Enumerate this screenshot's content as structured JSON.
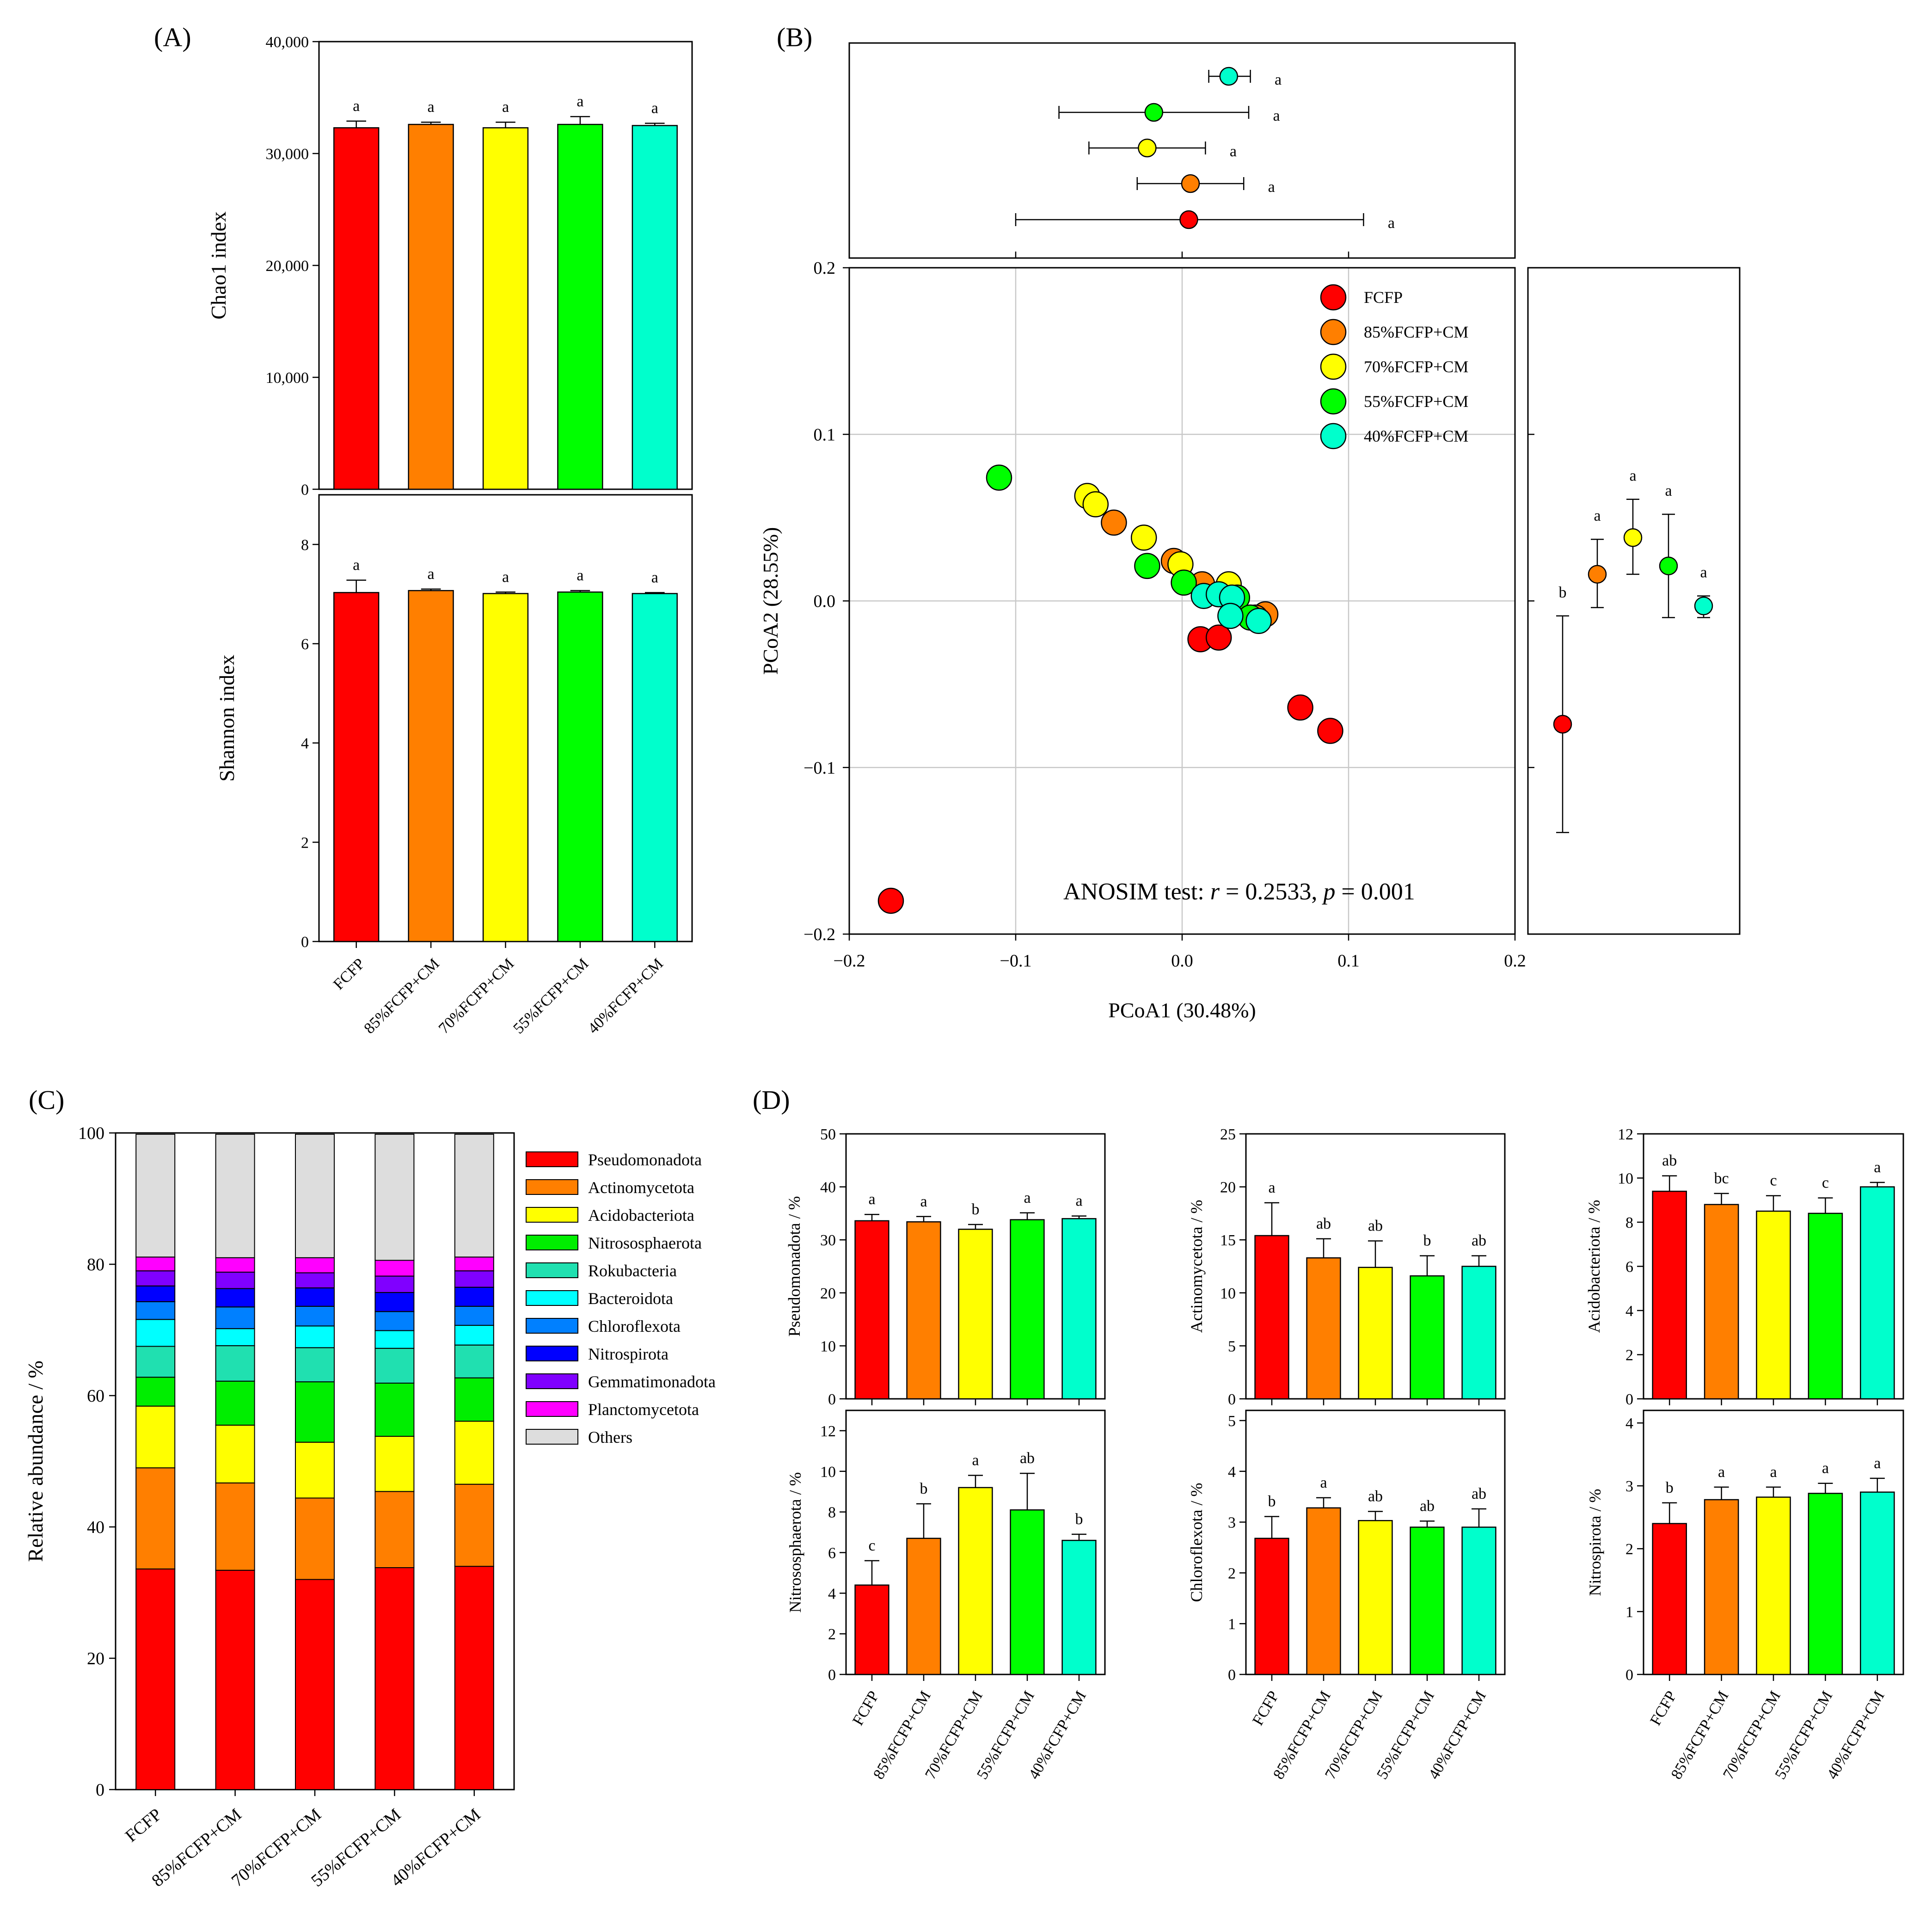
{
  "colors": {
    "FCFP": "#ff0000",
    "85%FCFP+CM": "#ff7f00",
    "70%FCFP+CM": "#ffff00",
    "55%FCFP+CM": "#00ff00",
    "40%FCFP+CM": "#00ffcc"
  },
  "chart_data": [
    {
      "id": "A-chao1",
      "type": "bar",
      "panel": "(A)",
      "ylabel": "Chao1 index",
      "ylim": [
        0,
        40000
      ],
      "yticks": [
        0,
        10000,
        20000,
        30000,
        40000
      ],
      "yticklabels": [
        "0",
        "10,000",
        "20,000",
        "30,000",
        "40,000"
      ],
      "categories": [
        "FCFP",
        "85%FCFP+CM",
        "70%FCFP+CM",
        "55%FCFP+CM",
        "40%FCFP+CM"
      ],
      "values": [
        32300,
        32600,
        32300,
        32600,
        32500
      ],
      "errors": [
        600,
        200,
        500,
        700,
        200
      ],
      "letters": [
        "a",
        "a",
        "a",
        "a",
        "a"
      ]
    },
    {
      "id": "A-shannon",
      "type": "bar",
      "ylabel": "Shannon index",
      "ylim": [
        0,
        9
      ],
      "yticks": [
        0,
        2,
        4,
        6,
        8
      ],
      "yticklabels": [
        "0",
        "2",
        "4",
        "6",
        "8"
      ],
      "categories": [
        "FCFP",
        "85%FCFP+CM",
        "70%FCFP+CM",
        "55%FCFP+CM",
        "40%FCFP+CM"
      ],
      "values": [
        7.03,
        7.07,
        7.01,
        7.04,
        7.01
      ],
      "errors": [
        0.25,
        0.03,
        0.03,
        0.03,
        0.02
      ],
      "letters": [
        "a",
        "a",
        "a",
        "a",
        "a"
      ]
    },
    {
      "id": "B",
      "type": "scatter",
      "panel": "(B)",
      "xlabel": "PCoA1 (30.48%)",
      "ylabel": "PCoA2 (28.55%)",
      "xlim": [
        -0.2,
        0.2
      ],
      "ylim": [
        -0.2,
        0.2
      ],
      "xticks": [
        -0.2,
        -0.1,
        0.0,
        0.1,
        0.2
      ],
      "xticklabels": [
        "−0.2",
        "−0.1",
        "0.0",
        "0.1",
        "0.2"
      ],
      "yticks": [
        -0.2,
        -0.1,
        0.0,
        0.1,
        0.2
      ],
      "yticklabels": [
        "−0.2",
        "−0.1",
        "0.0",
        "0.1",
        "0.2"
      ],
      "annotation": {
        "prefix": "ANOSIM test: ",
        "r_sym": "r",
        "r_val": " = 0.2533, ",
        "p_sym": "p",
        "p_val": " = 0.001"
      },
      "series": [
        {
          "name": "FCFP",
          "points": [
            [
              -0.175,
              -0.18
            ],
            [
              0.071,
              -0.064
            ],
            [
              0.089,
              -0.078
            ],
            [
              0.011,
              -0.023
            ],
            [
              0.022,
              -0.022
            ]
          ]
        },
        {
          "name": "85%FCFP+CM",
          "points": [
            [
              -0.041,
              0.047
            ],
            [
              -0.005,
              0.024
            ],
            [
              0.012,
              0.01
            ],
            [
              0.05,
              -0.008
            ],
            [
              0.044,
              -0.01
            ]
          ]
        },
        {
          "name": "70%FCFP+CM",
          "points": [
            [
              -0.057,
              0.063
            ],
            [
              -0.052,
              0.058
            ],
            [
              -0.023,
              0.038
            ],
            [
              -0.001,
              0.022
            ],
            [
              0.028,
              0.01
            ]
          ]
        },
        {
          "name": "55%FCFP+CM",
          "points": [
            [
              -0.11,
              0.074
            ],
            [
              -0.021,
              0.021
            ],
            [
              0.001,
              0.011
            ],
            [
              0.033,
              0.002
            ],
            [
              0.041,
              -0.01
            ]
          ]
        },
        {
          "name": "40%FCFP+CM",
          "points": [
            [
              0.013,
              0.003
            ],
            [
              0.022,
              0.004
            ],
            [
              0.03,
              0.002
            ],
            [
              0.029,
              -0.009
            ],
            [
              0.046,
              -0.012
            ]
          ]
        }
      ],
      "top_marginal": {
        "order": [
          "40%FCFP+CM",
          "55%FCFP+CM",
          "70%FCFP+CM",
          "85%FCFP+CM",
          "FCFP"
        ],
        "means": [
          0.028,
          -0.017,
          -0.021,
          0.005,
          0.004
        ],
        "lo": [
          0.016,
          -0.074,
          -0.056,
          -0.027,
          -0.1
        ],
        "hi": [
          0.041,
          0.04,
          0.014,
          0.037,
          0.109
        ],
        "letters": [
          "a",
          "a",
          "a",
          "a",
          "a"
        ]
      },
      "right_marginal": {
        "order": [
          "FCFP",
          "85%FCFP+CM",
          "70%FCFP+CM",
          "55%FCFP+CM",
          "40%FCFP+CM"
        ],
        "means": [
          -0.074,
          0.016,
          0.038,
          0.021,
          -0.003
        ],
        "lo": [
          -0.139,
          -0.004,
          0.016,
          -0.01,
          -0.01
        ],
        "hi": [
          -0.009,
          0.037,
          0.061,
          0.052,
          0.003
        ],
        "letters": [
          "b",
          "a",
          "a",
          "a",
          "a"
        ]
      }
    },
    {
      "id": "C",
      "type": "bar",
      "stacked": true,
      "panel": "(C)",
      "ylabel": "Relative abundance / %",
      "ylim": [
        0,
        100
      ],
      "yticks": [
        0,
        20,
        40,
        60,
        80,
        100
      ],
      "yticklabels": [
        "0",
        "20",
        "40",
        "60",
        "80",
        "100"
      ],
      "categories": [
        "FCFP",
        "85%FCFP+CM",
        "70%FCFP+CM",
        "55%FCFP+CM",
        "40%FCFP+CM"
      ],
      "series": [
        {
          "name": "Pseudomonadota",
          "color": "#ff0000",
          "values": [
            33.6,
            33.4,
            32.0,
            33.8,
            34.0
          ]
        },
        {
          "name": "Actinomycetota",
          "color": "#ff7f00",
          "values": [
            15.4,
            13.3,
            12.4,
            11.6,
            12.5
          ]
        },
        {
          "name": "Acidobacteriota",
          "color": "#ffff00",
          "values": [
            9.4,
            8.8,
            8.5,
            8.4,
            9.6
          ]
        },
        {
          "name": "Nitrososphaerota",
          "color": "#00ee00",
          "values": [
            4.4,
            6.7,
            9.2,
            8.1,
            6.6
          ]
        },
        {
          "name": "Rokubacteria",
          "color": "#20e0b0",
          "values": [
            4.7,
            5.4,
            5.2,
            5.3,
            5.0
          ]
        },
        {
          "name": "Bacteroidota",
          "color": "#00ffff",
          "values": [
            4.1,
            2.6,
            3.3,
            2.7,
            3.0
          ]
        },
        {
          "name": "Chloroflexota",
          "color": "#0080ff",
          "values": [
            2.7,
            3.3,
            3.0,
            2.9,
            2.9
          ]
        },
        {
          "name": "Nitrospirota",
          "color": "#0000ff",
          "values": [
            2.4,
            2.8,
            2.8,
            2.9,
            2.9
          ]
        },
        {
          "name": "Gemmatimonadota",
          "color": "#8000ff",
          "values": [
            2.3,
            2.5,
            2.3,
            2.5,
            2.5
          ]
        },
        {
          "name": "Planctomycetota",
          "color": "#ff00ff",
          "values": [
            2.1,
            2.2,
            2.3,
            2.4,
            2.1
          ]
        },
        {
          "name": "Others",
          "color": "#dddddd",
          "values": [
            18.7,
            18.8,
            18.8,
            19.2,
            18.7
          ]
        }
      ]
    },
    {
      "id": "D-pseudo",
      "type": "bar",
      "panel": "(D)",
      "ylabel": "Pseudomonadota / %",
      "ylim": [
        0,
        50
      ],
      "yticks": [
        0,
        10,
        20,
        30,
        40,
        50
      ],
      "yticklabels": [
        "0",
        "10",
        "20",
        "30",
        "40",
        "50"
      ],
      "categories": [
        "FCFP",
        "85%FCFP+CM",
        "70%FCFP+CM",
        "55%FCFP+CM",
        "40%FCFP+CM"
      ],
      "values": [
        33.6,
        33.4,
        32.0,
        33.8,
        34.0
      ],
      "errors": [
        1.2,
        1.0,
        0.9,
        1.3,
        0.5
      ],
      "letters": [
        "a",
        "a",
        "b",
        "a",
        "a"
      ]
    },
    {
      "id": "D-actino",
      "type": "bar",
      "ylabel": "Actinomycetota / %",
      "ylim": [
        0,
        25
      ],
      "yticks": [
        0,
        5,
        10,
        15,
        20,
        25
      ],
      "yticklabels": [
        "0",
        "5",
        "10",
        "15",
        "20",
        "25"
      ],
      "categories": [
        "FCFP",
        "85%FCFP+CM",
        "70%FCFP+CM",
        "55%FCFP+CM",
        "40%FCFP+CM"
      ],
      "values": [
        15.4,
        13.3,
        12.4,
        11.6,
        12.5
      ],
      "errors": [
        3.1,
        1.8,
        2.5,
        1.9,
        1.0
      ],
      "letters": [
        "a",
        "ab",
        "ab",
        "b",
        "ab"
      ]
    },
    {
      "id": "D-acido",
      "type": "bar",
      "ylabel": "Acidobacteriota / %",
      "ylim": [
        0,
        12
      ],
      "yticks": [
        0,
        2,
        4,
        6,
        8,
        10,
        12
      ],
      "yticklabels": [
        "0",
        "2",
        "4",
        "6",
        "8",
        "10",
        "12"
      ],
      "categories": [
        "FCFP",
        "85%FCFP+CM",
        "70%FCFP+CM",
        "55%FCFP+CM",
        "40%FCFP+CM"
      ],
      "values": [
        9.4,
        8.8,
        8.5,
        8.4,
        9.6
      ],
      "errors": [
        0.7,
        0.5,
        0.7,
        0.7,
        0.2
      ],
      "letters": [
        "ab",
        "bc",
        "c",
        "c",
        "a"
      ]
    },
    {
      "id": "D-nitroso",
      "type": "bar",
      "ylabel": "Nitrososphaerota / %",
      "ylim": [
        0,
        13
      ],
      "yticks": [
        0,
        2,
        4,
        6,
        8,
        10,
        12
      ],
      "yticklabels": [
        "0",
        "2",
        "4",
        "6",
        "8",
        "10",
        "12"
      ],
      "categories": [
        "FCFP",
        "85%FCFP+CM",
        "70%FCFP+CM",
        "55%FCFP+CM",
        "40%FCFP+CM"
      ],
      "values": [
        4.4,
        6.7,
        9.2,
        8.1,
        6.6
      ],
      "errors": [
        1.2,
        1.7,
        0.6,
        1.8,
        0.3
      ],
      "letters": [
        "c",
        "b",
        "a",
        "ab",
        "b"
      ]
    },
    {
      "id": "D-chloro",
      "type": "bar",
      "ylabel": "Chloroflexota / %",
      "ylim": [
        0,
        5.2
      ],
      "yticks": [
        0,
        1,
        2,
        3,
        4,
        5
      ],
      "yticklabels": [
        "0",
        "1",
        "2",
        "3",
        "4",
        "5"
      ],
      "categories": [
        "FCFP",
        "85%FCFP+CM",
        "70%FCFP+CM",
        "55%FCFP+CM",
        "40%FCFP+CM"
      ],
      "values": [
        2.68,
        3.28,
        3.03,
        2.9,
        2.9
      ],
      "errors": [
        0.43,
        0.2,
        0.18,
        0.12,
        0.36
      ],
      "letters": [
        "b",
        "a",
        "ab",
        "ab",
        "ab"
      ]
    },
    {
      "id": "D-nitrospi",
      "type": "bar",
      "ylabel": "Nitrospirota / %",
      "ylim": [
        0,
        4.2
      ],
      "yticks": [
        0,
        1,
        2,
        3,
        4
      ],
      "yticklabels": [
        "0",
        "1",
        "2",
        "3",
        "4"
      ],
      "categories": [
        "FCFP",
        "85%FCFP+CM",
        "70%FCFP+CM",
        "55%FCFP+CM",
        "40%FCFP+CM"
      ],
      "values": [
        2.4,
        2.78,
        2.82,
        2.88,
        2.9
      ],
      "errors": [
        0.33,
        0.2,
        0.16,
        0.16,
        0.22
      ],
      "letters": [
        "b",
        "a",
        "a",
        "a",
        "a"
      ]
    }
  ]
}
